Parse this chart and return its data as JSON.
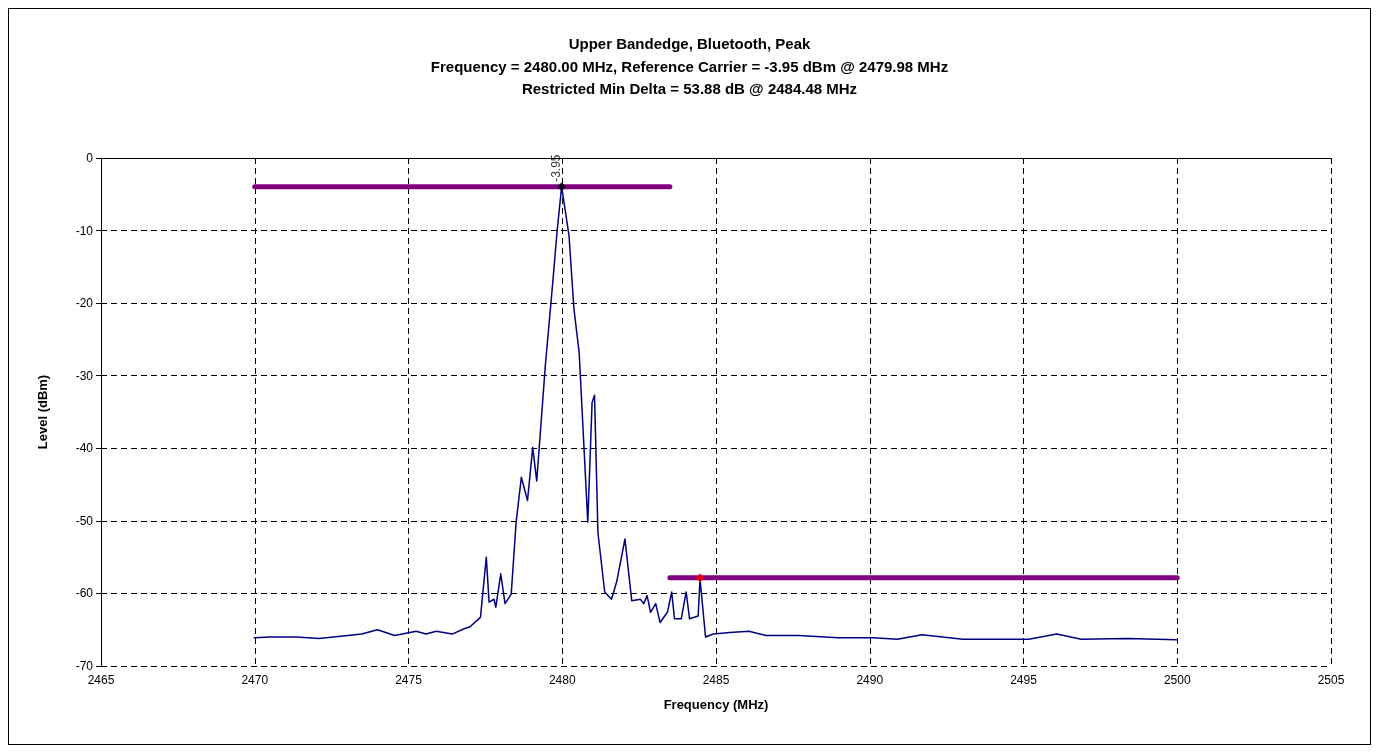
{
  "chart_data": {
    "type": "line",
    "title": "Upper Bandedge, Bluetooth, Peak",
    "subtitle": "Frequency = 2480.00 MHz, Reference Carrier = -3.95 dBm @ 2479.98 MHz\nRestricted Min Delta = 53.88 dB @ 2484.48 MHz",
    "xlabel": "Frequency (MHz)",
    "ylabel": "Level (dBm)",
    "xlim": [
      2465,
      2505
    ],
    "xticks": [
      2465,
      2470,
      2475,
      2480,
      2485,
      2490,
      2495,
      2500,
      2505
    ],
    "ylim": [
      -70,
      0
    ],
    "yticks": [
      -70,
      -60,
      -50,
      -40,
      -30,
      -20,
      -10,
      0
    ],
    "grid": true,
    "marker": "none",
    "line_style": "solid",
    "series": [
      {
        "color": "#000080",
        "x": [
          2469.98,
          2470.5,
          2471.35,
          2472.09,
          2472.8,
          2473.48,
          2473.99,
          2474.55,
          2475.25,
          2475.57,
          2475.9,
          2476.42,
          2476.79,
          2477.0,
          2477.34,
          2477.53,
          2477.62,
          2477.78,
          2477.84,
          2478.0,
          2478.14,
          2478.34,
          2478.5,
          2478.67,
          2478.87,
          2479.04,
          2479.17,
          2479.45,
          2479.69,
          2479.83,
          2479.98,
          2480.22,
          2480.38,
          2480.55,
          2480.83,
          2480.97,
          2481.05,
          2481.16,
          2481.38,
          2481.6,
          2481.77,
          2482.04,
          2482.15,
          2482.26,
          2482.54,
          2482.65,
          2482.76,
          2482.87,
          2483.04,
          2483.18,
          2483.42,
          2483.56,
          2483.65,
          2483.87,
          2484.03,
          2484.14,
          2484.42,
          2484.48,
          2484.66,
          2484.91,
          2485.45,
          2486.07,
          2486.62,
          2487.69,
          2488.97,
          2490.1,
          2490.9,
          2491.7,
          2493.03,
          2494.1,
          2495.17,
          2496.08,
          2496.88,
          2498.37,
          2499.97
        ],
        "values": [
          -66.1,
          -66.0,
          -66.0,
          -66.2,
          -65.9,
          -65.6,
          -65.0,
          -65.8,
          -65.2,
          -65.6,
          -65.2,
          -65.6,
          -64.9,
          -64.6,
          -63.3,
          -55.0,
          -61.2,
          -60.8,
          -61.9,
          -57.3,
          -61.4,
          -60.1,
          -50.2,
          -44.0,
          -47.2,
          -39.9,
          -44.5,
          -28.6,
          -17.2,
          -10.2,
          -3.95,
          -10.7,
          -20.8,
          -26.8,
          -50.2,
          -33.7,
          -32.7,
          -51.6,
          -59.8,
          -60.8,
          -58.4,
          -52.5,
          -56.8,
          -61.0,
          -60.8,
          -61.4,
          -60.3,
          -62.6,
          -61.4,
          -64.0,
          -62.6,
          -59.8,
          -63.5,
          -63.5,
          -59.8,
          -63.5,
          -63.1,
          -58.0,
          -66.0,
          -65.6,
          -65.4,
          -65.2,
          -65.8,
          -65.8,
          -66.1,
          -66.1,
          -66.3,
          -65.7,
          -66.3,
          -66.3,
          -66.3,
          -65.6,
          -66.3,
          -66.2,
          -66.4
        ]
      },
      {
        "type": "line",
        "color": "#800080",
        "x": [
          2470,
          2483.5
        ],
        "values": [
          -3.95,
          -3.95
        ]
      },
      {
        "type": "line",
        "color": "#800080",
        "x": [
          2483.5,
          2500
        ],
        "values": [
          -57.83,
          -57.83
        ]
      },
      {
        "type": "scatter",
        "color": "#000000",
        "marker": "diamond",
        "x": [
          2479.98
        ],
        "values": [
          -3.95
        ],
        "value_labels": [
          "-3.95"
        ]
      },
      {
        "type": "scatter",
        "color": "#ff0000",
        "marker": "diamond",
        "x": [
          2484.48
        ],
        "values": [
          -57.83
        ]
      }
    ]
  }
}
